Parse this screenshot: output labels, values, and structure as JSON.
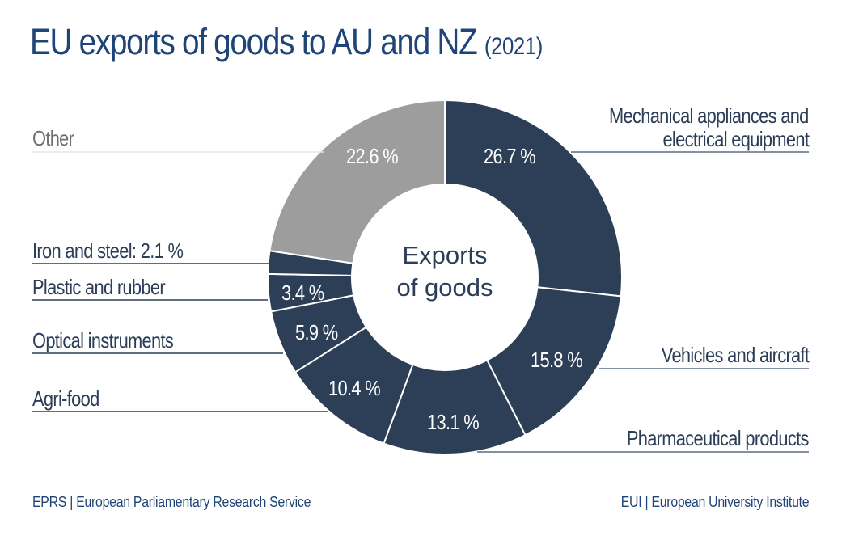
{
  "title": {
    "main": "EU exports of goods to AU and NZ",
    "year": "(2021)"
  },
  "center_label": {
    "line1": "Exports",
    "line2": "of goods"
  },
  "labels": {
    "mechanical_line1": "Mechanical appliances and",
    "mechanical_line2": "electrical equipment",
    "vehicles": "Vehicles and aircraft",
    "pharma": "Pharmaceutical products",
    "agri": "Agri-food",
    "optical": "Optical instruments",
    "plastic": "Plastic and rubber",
    "iron": "Iron and steel: 2.1 %",
    "other": "Other"
  },
  "value_labels": {
    "mechanical": "26.7 %",
    "vehicles": "15.8 %",
    "pharma": "13.1 %",
    "agri": "10.4 %",
    "optical": "5.9 %",
    "plastic": "3.4 %",
    "other": "22.6 %"
  },
  "footer": {
    "left": "EPRS | European Parliamentary Research Service",
    "right": "EUI | European University Institute"
  },
  "colors": {
    "dark_slice": "#2d3e57",
    "other_slice": "#9d9d9d",
    "title": "#1f4477"
  },
  "chart_data": {
    "type": "pie",
    "subtype": "donut",
    "title": "EU exports of goods to AU and NZ (2021)",
    "center_text": "Exports of goods",
    "unit": "%",
    "start_angle": "12 o'clock, clockwise",
    "categories": [
      "Mechanical appliances and electrical equipment",
      "Vehicles and aircraft",
      "Pharmaceutical products",
      "Agri-food",
      "Optical instruments",
      "Plastic and rubber",
      "Iron and steel",
      "Other"
    ],
    "values": [
      26.7,
      15.8,
      13.1,
      10.4,
      5.9,
      3.4,
      2.1,
      22.6
    ],
    "slice_colors": [
      "#2d3e57",
      "#2d3e57",
      "#2d3e57",
      "#2d3e57",
      "#2d3e57",
      "#2d3e57",
      "#2d3e57",
      "#9d9d9d"
    ],
    "legend": "none (leader-line labels)",
    "source_left": "EPRS | European Parliamentary Research Service",
    "source_right": "EUI | European University Institute"
  }
}
